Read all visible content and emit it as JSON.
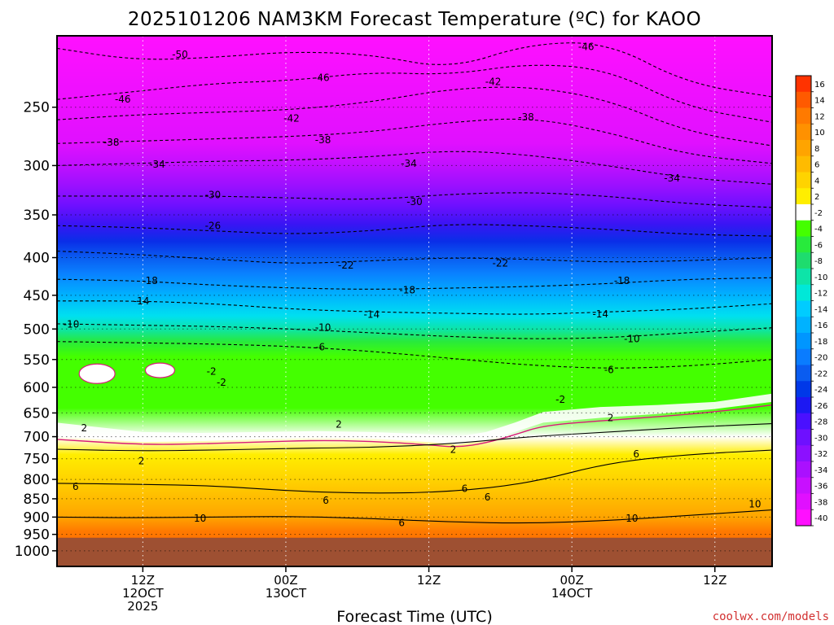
{
  "title": "2025101206 NAM3KM Forecast Temperature (ºC) for KAOO",
  "credit": "coolwx.com/models",
  "colors": {
    "ground": "#9e5032",
    "freezing_contour": "#d81b78",
    "contour": "#000000"
  },
  "chart_data": {
    "type": "heatmap",
    "title": "2025101206 NAM3KM Forecast Temperature (ºC) for KAOO",
    "xlabel": "Forecast Time (UTC)",
    "ylabel": "",
    "y_scale": "log",
    "y_reversed": true,
    "ylim": [
      200,
      1050
    ],
    "y_ticks": [
      250,
      300,
      350,
      400,
      450,
      500,
      550,
      600,
      650,
      700,
      750,
      800,
      850,
      900,
      950,
      1000
    ],
    "x_range_hours": [
      -6,
      44
    ],
    "x_ticks": [
      {
        "hour": 0,
        "lines": [
          "12Z",
          "12OCT",
          "2025"
        ]
      },
      {
        "hour": 10,
        "lines": [
          "00Z",
          "13OCT"
        ]
      },
      {
        "hour": 20,
        "lines": [
          "12Z"
        ]
      },
      {
        "hour": 30,
        "lines": [
          "00Z",
          "14OCT"
        ]
      },
      {
        "hour": 40,
        "lines": [
          "12Z"
        ]
      }
    ],
    "grid": true,
    "ground_level_hpa": 960,
    "colorbar": {
      "placement": "right",
      "labels": [
        "16",
        "14",
        "12",
        "10",
        "8",
        "6",
        "4",
        "2",
        "-2",
        "-4",
        "-6",
        "-8",
        "-10",
        "-12",
        "-14",
        "-16",
        "-18",
        "-20",
        "-22",
        "-24",
        "-26",
        "-28",
        "-30",
        "-32",
        "-34",
        "-36",
        "-38",
        "-40"
      ],
      "colors": [
        "#ff3300",
        "#ff5a00",
        "#ff7a00",
        "#ff9100",
        "#ffa400",
        "#ffbb00",
        "#ffd300",
        "#ffee00",
        "#ffffff",
        "#44ff00",
        "#28ea3c",
        "#1edc6e",
        "#0de4a8",
        "#00e8d8",
        "#00ccff",
        "#00b2ff",
        "#0096ff",
        "#0a7cff",
        "#0a5cf0",
        "#0038e8",
        "#1c18f2",
        "#4a10ff",
        "#6e10ff",
        "#8c10ff",
        "#aa10ff",
        "#c810ff",
        "#e010ff",
        "#ff10ff"
      ]
    },
    "contour_labels": [
      {
        "text": "-50",
        "hour": 2.6,
        "p": 212
      },
      {
        "text": "-46",
        "hour": -1.4,
        "p": 244
      },
      {
        "text": "-46",
        "hour": 12.5,
        "p": 228
      },
      {
        "text": "-46",
        "hour": 31,
        "p": 207
      },
      {
        "text": "-42",
        "hour": 10.4,
        "p": 259
      },
      {
        "text": "-42",
        "hour": 24.5,
        "p": 231
      },
      {
        "text": "-38",
        "hour": -2.2,
        "p": 279
      },
      {
        "text": "-38",
        "hour": 12.6,
        "p": 277
      },
      {
        "text": "-38",
        "hour": 26.8,
        "p": 258
      },
      {
        "text": "-34",
        "hour": 1,
        "p": 299
      },
      {
        "text": "-34",
        "hour": 18.6,
        "p": 298
      },
      {
        "text": "-34",
        "hour": 37,
        "p": 312
      },
      {
        "text": "-30",
        "hour": 4.9,
        "p": 329
      },
      {
        "text": "-30",
        "hour": 19,
        "p": 336
      },
      {
        "text": "-26",
        "hour": 4.9,
        "p": 362
      },
      {
        "text": "-22",
        "hour": 14.2,
        "p": 410
      },
      {
        "text": "-22",
        "hour": 25,
        "p": 407
      },
      {
        "text": "-18",
        "hour": 0.5,
        "p": 430
      },
      {
        "text": "-18",
        "hour": 18.5,
        "p": 443
      },
      {
        "text": "-18",
        "hour": 33.5,
        "p": 430
      },
      {
        "text": "-14",
        "hour": -0.1,
        "p": 458
      },
      {
        "text": "-14",
        "hour": 16,
        "p": 478
      },
      {
        "text": "-14",
        "hour": 32,
        "p": 477
      },
      {
        "text": "-10",
        "hour": -5,
        "p": 493
      },
      {
        "text": "-10",
        "hour": 12.6,
        "p": 498
      },
      {
        "text": "-10",
        "hour": 34.2,
        "p": 516
      },
      {
        "text": "-6",
        "hour": 12.4,
        "p": 529
      },
      {
        "text": "-6",
        "hour": 32.6,
        "p": 568
      },
      {
        "text": "-2",
        "hour": 4.8,
        "p": 571
      },
      {
        "text": "-2",
        "hour": 5.5,
        "p": 591
      },
      {
        "text": "-2",
        "hour": 29.2,
        "p": 623
      },
      {
        "text": "2",
        "hour": -4.1,
        "p": 681
      },
      {
        "text": "2",
        "hour": 13.7,
        "p": 674
      },
      {
        "text": "2",
        "hour": 32.7,
        "p": 660
      },
      {
        "text": "2",
        "hour": 21.7,
        "p": 729
      },
      {
        "text": "2",
        "hour": -0.1,
        "p": 755
      },
      {
        "text": "6",
        "hour": -4.7,
        "p": 818
      },
      {
        "text": "6",
        "hour": 22.5,
        "p": 824
      },
      {
        "text": "6",
        "hour": 12.8,
        "p": 855
      },
      {
        "text": "6",
        "hour": 24.1,
        "p": 846
      },
      {
        "text": "6",
        "hour": 34.5,
        "p": 739
      },
      {
        "text": "6",
        "hour": 18.1,
        "p": 917
      },
      {
        "text": "10",
        "hour": 4,
        "p": 904
      },
      {
        "text": "10",
        "hour": 34.2,
        "p": 904
      },
      {
        "text": "10",
        "hour": 42.8,
        "p": 864
      }
    ]
  }
}
